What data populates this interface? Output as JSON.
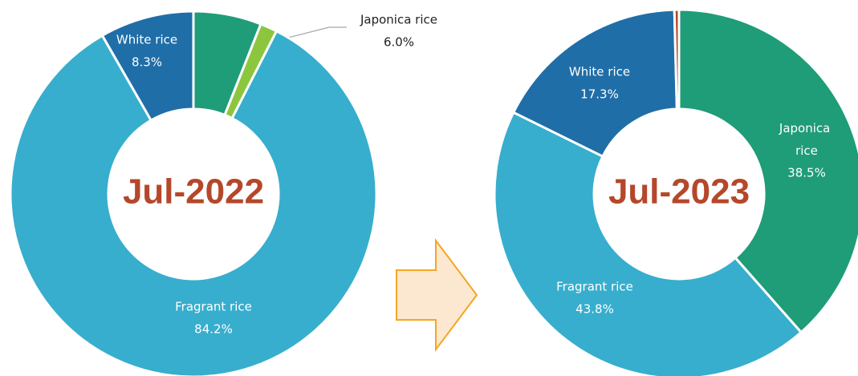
{
  "chart_data": [
    {
      "type": "pie",
      "title": "Jul-2022",
      "categories": [
        "Japonica rice",
        null,
        "Fragrant rice",
        "White rice"
      ],
      "values": [
        6.0,
        1.5,
        84.2,
        8.3
      ],
      "value_labels": [
        "6.0%",
        null,
        "84.2%",
        "8.3%"
      ],
      "colors": [
        "#1f9c78",
        "#8cc63f",
        "#37aecd",
        "#1f6ea8"
      ]
    },
    {
      "type": "pie",
      "title": "Jul-2023",
      "categories": [
        "Japonica rice",
        "Fragrant rice",
        "White rice",
        null
      ],
      "values": [
        38.5,
        43.8,
        17.3,
        0.4
      ],
      "value_labels": [
        "38.5%",
        "43.8%",
        "17.3%",
        null
      ],
      "colors": [
        "#1f9c78",
        "#37aecd",
        "#1f6ea8",
        "#b5472a"
      ]
    }
  ]
}
